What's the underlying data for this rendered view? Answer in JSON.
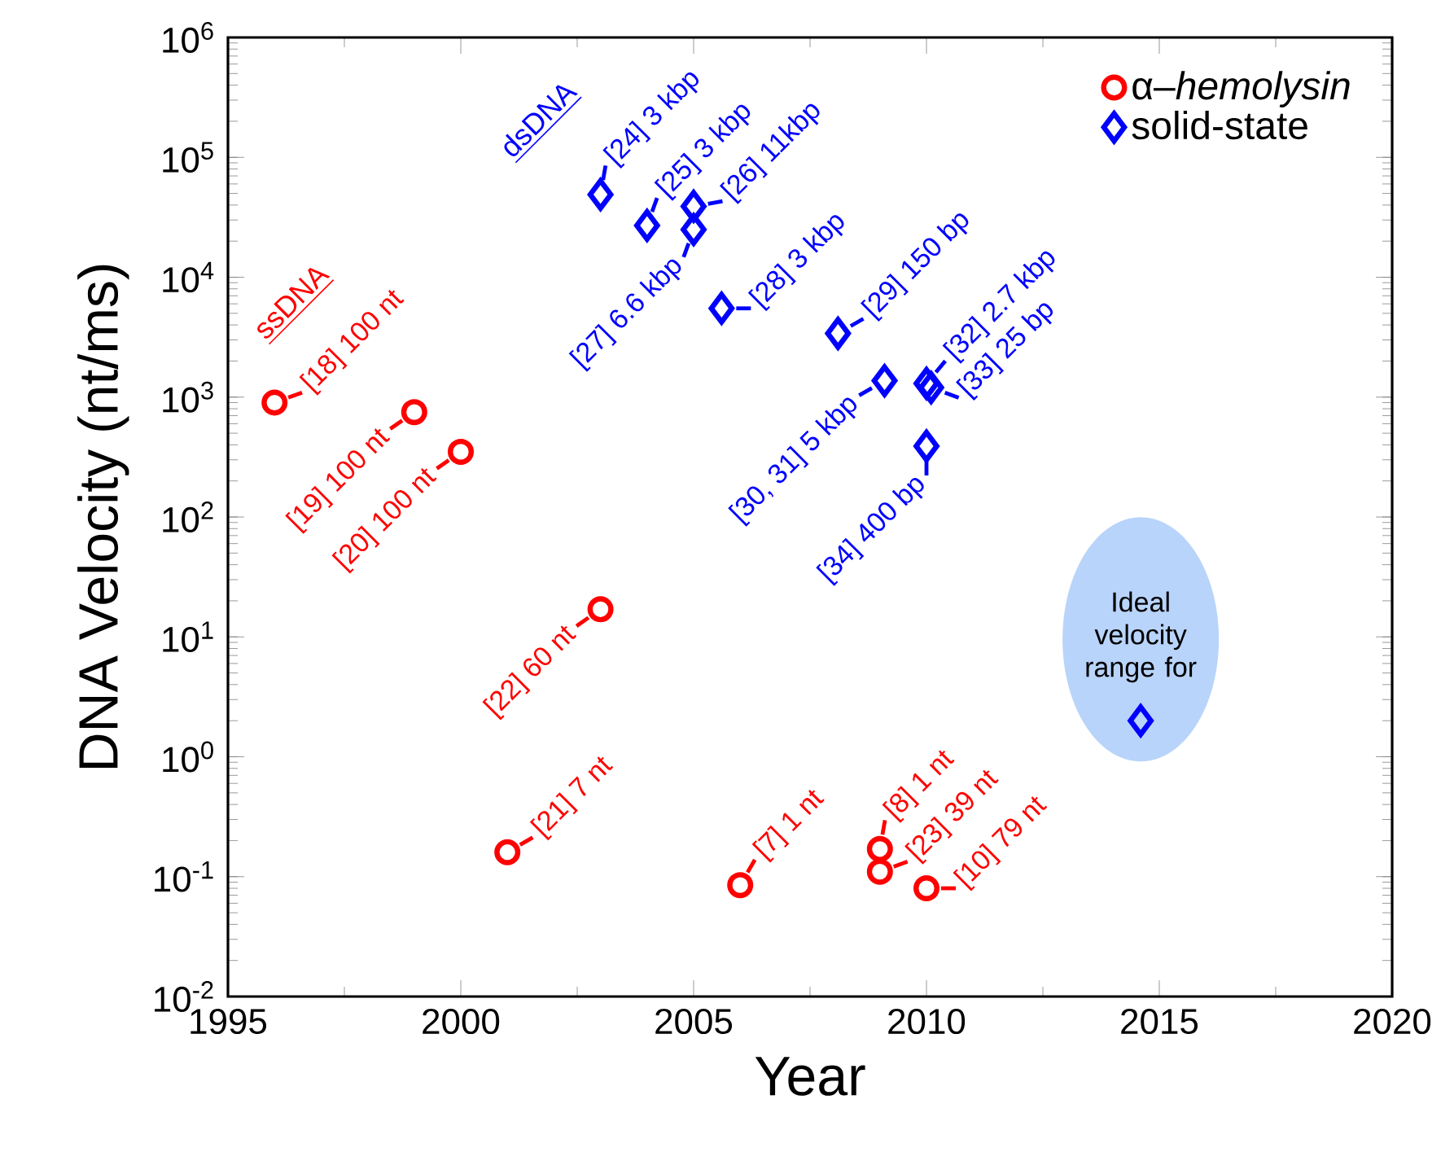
{
  "chart_data": {
    "type": "scatter",
    "xlabel": "Year",
    "ylabel": "DNA Velocity (nt/ms)",
    "xlim": [
      1995,
      2020
    ],
    "ylim": [
      0.01,
      1000000
    ],
    "log": "y",
    "legend": "top right",
    "xticks": [
      1995,
      2000,
      2005,
      2010,
      2015,
      2020
    ],
    "yticks": [
      {
        "value": 0.01,
        "label": "10$^{-2}$"
      },
      {
        "value": 0.1,
        "label": "10$^{-1}$"
      },
      {
        "value": 1,
        "label": "10$^{0}$"
      },
      {
        "value": 10,
        "label": "10$^{1}$"
      },
      {
        "value": 100,
        "label": "10$^{2}$"
      },
      {
        "value": 1000,
        "label": "10$^{3}$"
      },
      {
        "value": 10000,
        "label": "10$^{4}$"
      },
      {
        "value": 100000,
        "label": "10$^{5}$"
      },
      {
        "value": 1000000,
        "label": "10$^{6}$"
      }
    ],
    "series": [
      {
        "name": "α–*hemolysin*",
        "color": "#ff0000",
        "marker": "circle",
        "x": [
          1996,
          1999,
          2000,
          2003,
          2001,
          2006,
          2009,
          2009,
          2010
        ],
        "values": [
          900,
          750,
          350,
          17,
          0.16,
          0.085,
          0.17,
          0.11,
          0.08
        ]
      },
      {
        "name": "solid-state",
        "color": "#0000ff",
        "marker": "diamond",
        "x": [
          2003,
          2004,
          2005,
          2005,
          2005.6,
          2008.1,
          2009.1,
          2010,
          2010.1,
          2010
        ],
        "values": [
          49000,
          27000,
          39000,
          25000,
          5500,
          3400,
          1370,
          1300,
          1200,
          390
        ]
      },
      {
        "color": "#0000ff",
        "marker": "diamond",
        "x": [
          2014.6
        ],
        "values": [
          2
        ]
      }
    ],
    "annotations": [
      "ssDNA",
      "dsDNA",
      {
        "text": "[18] 100 nt",
        "x": 1996,
        "y": 900
      },
      {
        "text": "[19] 100 nt",
        "x": 1999,
        "y": 750
      },
      {
        "text": "[20] 100 nt",
        "x": 2000,
        "y": 350
      },
      {
        "text": "[22] 60 nt",
        "x": 2003,
        "y": 17
      },
      {
        "text": "[21] 7 nt",
        "x": 2001,
        "y": 0.16
      },
      {
        "text": "[7] 1 nt",
        "x": 2006,
        "y": 0.085
      },
      {
        "text": "[8] 1 nt",
        "x": 2009,
        "y": 0.17
      },
      {
        "text": "[23] 39 nt",
        "x": 2009,
        "y": 0.11
      },
      {
        "text": "[10] 79 nt",
        "x": 2010,
        "y": 0.08
      },
      {
        "text": "[24] 3 kbp",
        "x": 2003,
        "y": 49000
      },
      {
        "text": "[25] 3 kbp",
        "x": 2004,
        "y": 27000
      },
      {
        "text": "[26] 11kbp",
        "x": 2005,
        "y": 39000
      },
      {
        "text": "[27] 6.6 kbp",
        "x": 2005,
        "y": 25000
      },
      {
        "text": "[28] 3 kbp",
        "x": 2005.6,
        "y": 5500
      },
      {
        "text": "[29] 150 bp",
        "x": 2008.1,
        "y": 3400
      },
      {
        "text": "[30, 31] 5 kbp",
        "x": 2009.1,
        "y": 1370
      },
      {
        "text": "[32] 2.7 kbp",
        "x": 2010,
        "y": 1300
      },
      {
        "text": "[33] 25 bp",
        "x": 2010.1,
        "y": 1200
      },
      {
        "text": "[34] 400 bp",
        "x": 2010,
        "y": 390
      },
      {
        "text": "Ideal velocity range for",
        "x": 2014.6,
        "y": 2
      }
    ]
  }
}
